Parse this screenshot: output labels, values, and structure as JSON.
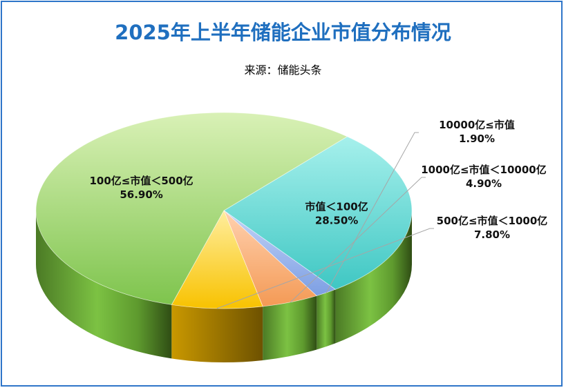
{
  "title": "2025年上半年储能企业市值分布情况",
  "subtitle": "来源：储能头条",
  "colors": {
    "title": "#1f6fbf",
    "frame": "#2e75c9"
  },
  "chart_data": {
    "type": "pie",
    "style": "3d-pie",
    "slices": [
      {
        "label": "市值＜100亿",
        "value": 28.5,
        "value_label": "28.50%",
        "color_light": "#a6f0ec",
        "color_dark": "#3fc7c3"
      },
      {
        "label": "10000亿≤市值",
        "value": 1.9,
        "value_label": "1.90%",
        "color_light": "#c4d4f7",
        "color_dark": "#7d9fe3"
      },
      {
        "label": "1000亿≤市值＜10000亿",
        "value": 4.9,
        "value_label": "4.90%",
        "color_light": "#ffd1b0",
        "color_dark": "#f49a55"
      },
      {
        "label": "500亿≤市值＜1000亿",
        "value": 7.8,
        "value_label": "7.80%",
        "color_light": "#ffee9e",
        "color_dark": "#f8c200"
      },
      {
        "label": "100亿≤市值＜500亿",
        "value": 56.9,
        "value_label": "56.90%",
        "color_light": "#d9f1b6",
        "color_dark": "#7ec44d"
      }
    ]
  }
}
